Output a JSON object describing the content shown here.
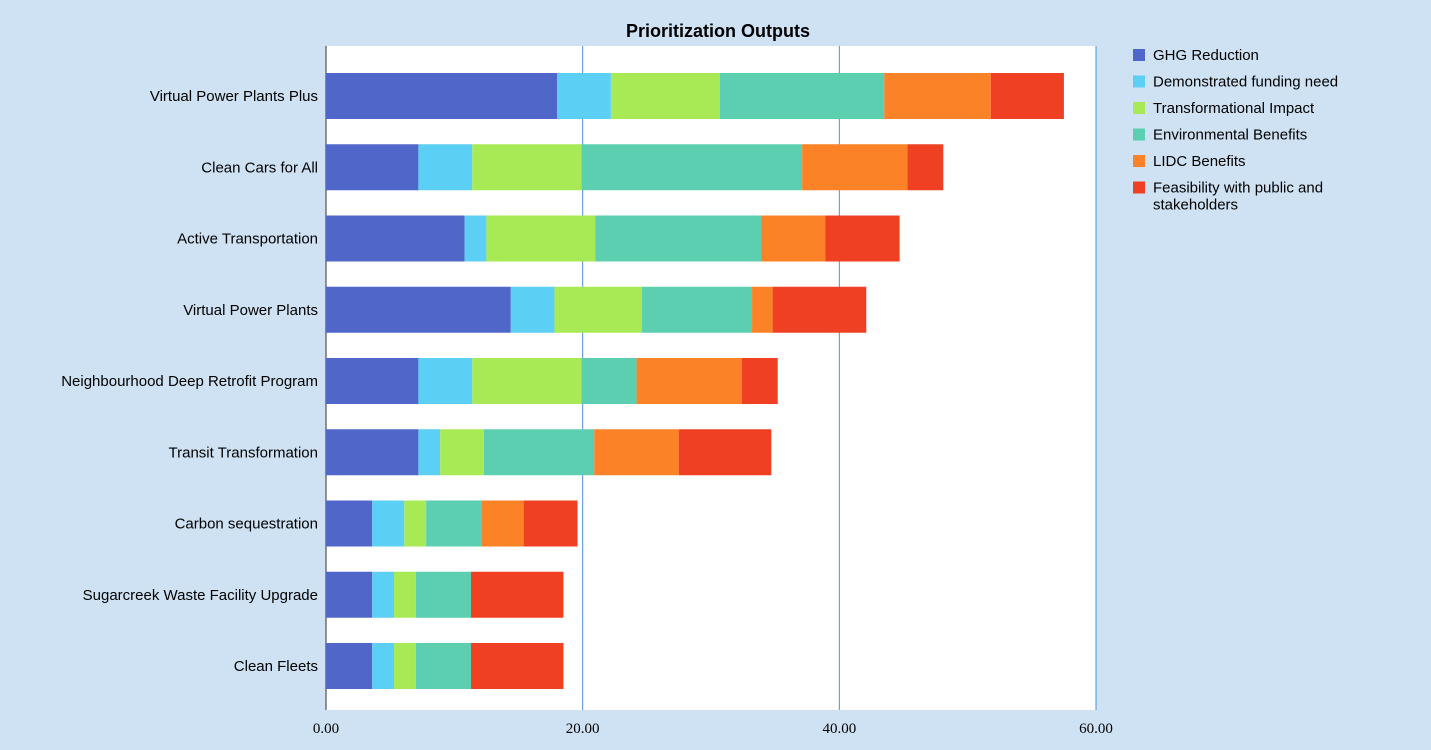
{
  "chart_data": {
    "type": "bar",
    "orientation": "horizontal",
    "stacked": true,
    "title": "Prioritization Outputs",
    "xlabel": "",
    "ylabel": "",
    "xlim": [
      0,
      60
    ],
    "x_ticks": [
      0,
      20,
      40,
      60
    ],
    "x_tick_labels": [
      "0.00",
      "20.00",
      "40.00",
      "60.00"
    ],
    "grid": "vertical lines at major ticks",
    "legend_position": "right",
    "categories": [
      "Virtual Power Plants Plus",
      "Clean Cars for All",
      "Active Transportation",
      "Virtual Power Plants",
      "Neighbourhood Deep Retrofit Program",
      "Transit Transformation",
      "Carbon sequestration",
      "Sugarcreek Waste Facility Upgrade",
      "Clean Fleets"
    ],
    "series": [
      {
        "name": "GHG Reduction",
        "color": "#5067c9",
        "values": [
          18,
          7.2,
          10.8,
          14.4,
          7.2,
          7.2,
          3.6,
          3.6,
          3.6
        ]
      },
      {
        "name": "Demonstrated funding need",
        "color": "#5ccff4",
        "values": [
          4.2,
          4.2,
          1.7,
          3.4,
          4.2,
          1.7,
          2.5,
          1.7,
          1.7
        ]
      },
      {
        "name": "Transformational Impact",
        "color": "#a8ea56",
        "values": [
          8.5,
          8.5,
          8.5,
          6.8,
          8.5,
          3.4,
          1.7,
          1.7,
          1.7
        ]
      },
      {
        "name": "Environmental Benefits",
        "color": "#5ccfb0",
        "values": [
          12.8,
          17.2,
          12.9,
          8.6,
          4.3,
          8.6,
          4.3,
          4.3,
          4.3
        ]
      },
      {
        "name": "LIDC Benefits",
        "color": "#fb8226",
        "values": [
          8.3,
          8.2,
          5,
          1.6,
          8.2,
          6.6,
          3.3,
          0,
          0
        ]
      },
      {
        "name": "Feasibility with public and stakeholders",
        "color": "#ef4023",
        "values": [
          5.7,
          2.8,
          5.8,
          7.3,
          2.8,
          7.2,
          4.2,
          7.2,
          7.2
        ]
      }
    ]
  }
}
